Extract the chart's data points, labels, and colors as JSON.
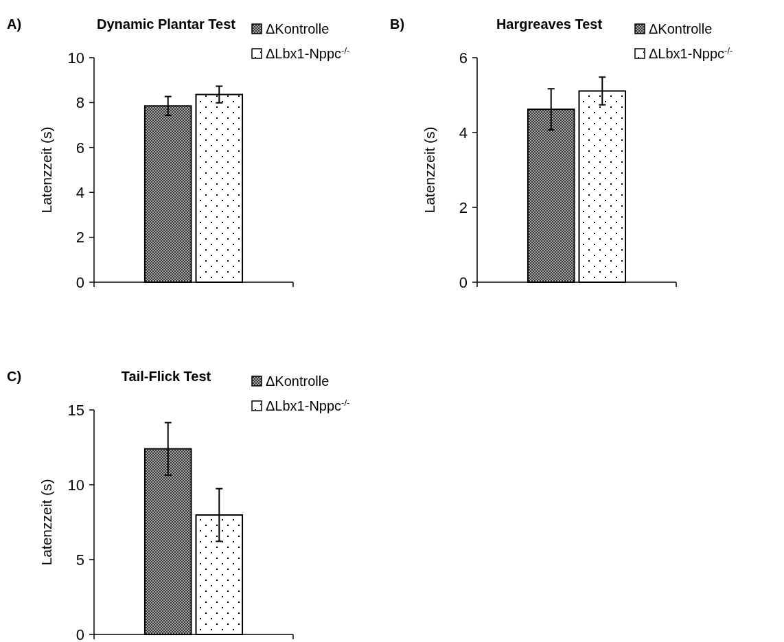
{
  "chart_data": [
    {
      "type": "bar",
      "title": "Dynamic Plantar Test",
      "ylabel": "Latenzzeit (s)",
      "annotations": [
        "A)"
      ],
      "categories": [
        null
      ],
      "ylim": [
        0,
        10
      ],
      "yticks": [
        0,
        2,
        4,
        6,
        8,
        10
      ],
      "legend": "top right",
      "grid": false,
      "series": [
        {
          "name": "ΔKontrolle",
          "color": "#606060",
          "values": [
            7.85
          ],
          "errors": [
            0.42
          ]
        },
        {
          "name": "ΔLbx1-Nppc$^{-/-}$",
          "color": "#ffffff",
          "values": [
            8.36
          ],
          "errors": [
            0.37
          ]
        }
      ]
    },
    {
      "type": "bar",
      "title": "Hargreaves Test",
      "ylabel": "Latenzzeit (s)",
      "annotations": [
        "B)"
      ],
      "categories": [
        null
      ],
      "ylim": [
        0,
        6
      ],
      "yticks": [
        0,
        2,
        4,
        6
      ],
      "legend": "top right",
      "grid": false,
      "series": [
        {
          "name": "ΔKontrolle",
          "color": "#606060",
          "values": [
            4.62
          ],
          "errors": [
            0.55
          ]
        },
        {
          "name": "ΔLbx1-Nppc$^{-/-}$",
          "color": "#ffffff",
          "values": [
            5.11
          ],
          "errors": [
            0.37
          ]
        }
      ]
    },
    {
      "type": "bar",
      "title": "Tail-Flick Test",
      "ylabel": "Latenzzeit (s)",
      "annotations": [
        "C)"
      ],
      "categories": [
        null
      ],
      "ylim": [
        0,
        15
      ],
      "yticks": [
        0,
        5,
        10,
        15
      ],
      "legend": "top right",
      "grid": false,
      "series": [
        {
          "name": "ΔKontrolle",
          "color": "#606060",
          "values": [
            12.4
          ],
          "errors": [
            1.75
          ]
        },
        {
          "name": "ΔLbx1-Nppc$^{-/-}$",
          "color": "#ffffff",
          "values": [
            7.98
          ],
          "errors": [
            1.76
          ]
        }
      ]
    }
  ]
}
